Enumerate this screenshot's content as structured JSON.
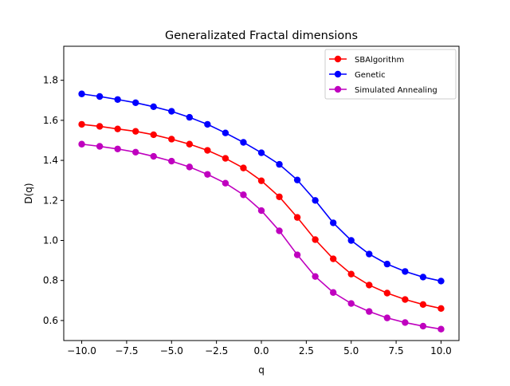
{
  "chart_data": {
    "type": "line",
    "title": "Generalizated Fractal dimensions",
    "xlabel": "q",
    "ylabel": "D(q)",
    "xlim": [
      -11,
      11
    ],
    "ylim": [
      0.5,
      1.97
    ],
    "grid": false,
    "legend_position": "top-right",
    "x": [
      -10,
      -9,
      -8,
      -7,
      -6,
      -5,
      -4,
      -3,
      -2,
      -1,
      0,
      1,
      2,
      3,
      4,
      5,
      6,
      7,
      8,
      9,
      10
    ],
    "x_ticks": [
      {
        "value": -10,
        "label": "−10.0"
      },
      {
        "value": -7.5,
        "label": "−7.5"
      },
      {
        "value": -5,
        "label": "−5.0"
      },
      {
        "value": -2.5,
        "label": "−2.5"
      },
      {
        "value": 0,
        "label": "0.0"
      },
      {
        "value": 2.5,
        "label": "2.5"
      },
      {
        "value": 5,
        "label": "5.0"
      },
      {
        "value": 7.5,
        "label": "7.5"
      },
      {
        "value": 10,
        "label": "10.0"
      }
    ],
    "y_ticks": [
      {
        "value": 0.6,
        "label": "0.6"
      },
      {
        "value": 0.8,
        "label": "0.8"
      },
      {
        "value": 1.0,
        "label": "1.0"
      },
      {
        "value": 1.2,
        "label": "1.2"
      },
      {
        "value": 1.4,
        "label": "1.4"
      },
      {
        "value": 1.6,
        "label": "1.6"
      },
      {
        "value": 1.8,
        "label": "1.8"
      }
    ],
    "series": [
      {
        "name": "SBAlgorithm",
        "color": "#ff0000",
        "values": [
          1.58,
          1.57,
          1.557,
          1.545,
          1.528,
          1.506,
          1.481,
          1.45,
          1.41,
          1.362,
          1.298,
          1.218,
          1.115,
          1.004,
          0.908,
          0.832,
          0.777,
          0.737,
          0.705,
          0.68,
          0.66
        ]
      },
      {
        "name": "Genetic",
        "color": "#0000ff",
        "values": [
          1.732,
          1.719,
          1.704,
          1.688,
          1.668,
          1.645,
          1.615,
          1.58,
          1.537,
          1.49,
          1.438,
          1.38,
          1.302,
          1.2,
          1.088,
          1.0,
          0.932,
          0.882,
          0.845,
          0.817,
          0.797
        ]
      },
      {
        "name": "Simulated Annealing",
        "color": "#bf00bf",
        "values": [
          1.481,
          1.47,
          1.457,
          1.441,
          1.42,
          1.396,
          1.367,
          1.33,
          1.286,
          1.228,
          1.149,
          1.048,
          0.928,
          0.82,
          0.74,
          0.685,
          0.645,
          0.613,
          0.59,
          0.572,
          0.557
        ]
      }
    ]
  }
}
